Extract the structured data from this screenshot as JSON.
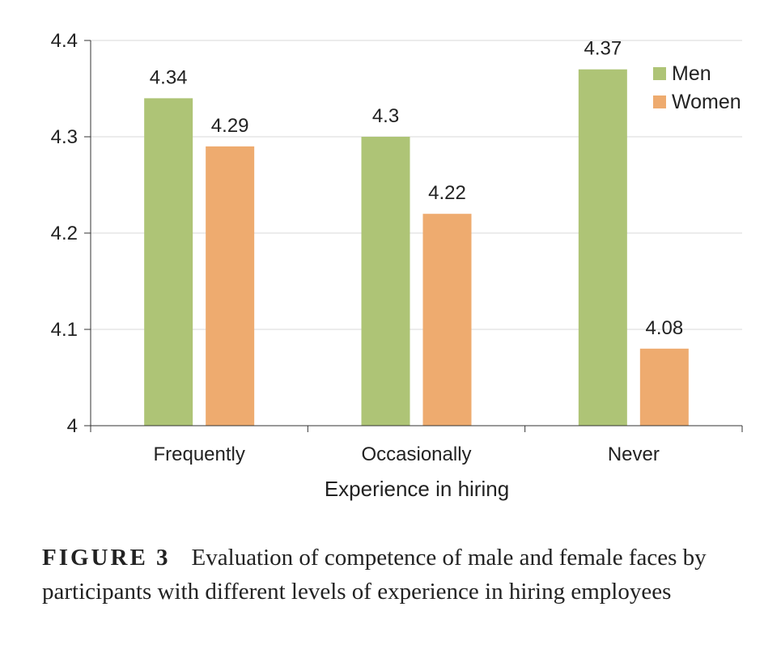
{
  "chart_data": {
    "type": "bar",
    "categories": [
      "Frequently",
      "Occasionally",
      "Never"
    ],
    "series": [
      {
        "name": "Men",
        "color": "#aec476",
        "values": [
          4.34,
          4.3,
          4.37
        ],
        "labels": [
          "4.34",
          "4.3",
          "4.37"
        ]
      },
      {
        "name": "Women",
        "color": "#eeab6f",
        "values": [
          4.29,
          4.22,
          4.08
        ],
        "labels": [
          "4.29",
          "4.22",
          "4.08"
        ]
      }
    ],
    "xlabel": "Experience in hiring",
    "ylabel": "",
    "ylim": [
      4,
      4.4
    ],
    "yticks": [
      "4",
      "4.1",
      "4.2",
      "4.3",
      "4.4"
    ],
    "grid": true,
    "legend_position": "top-right"
  },
  "caption": {
    "figure_label": "FIGURE 3",
    "text": "Evaluation of competence of male and female faces by participants with different levels of experience in hiring employees"
  }
}
